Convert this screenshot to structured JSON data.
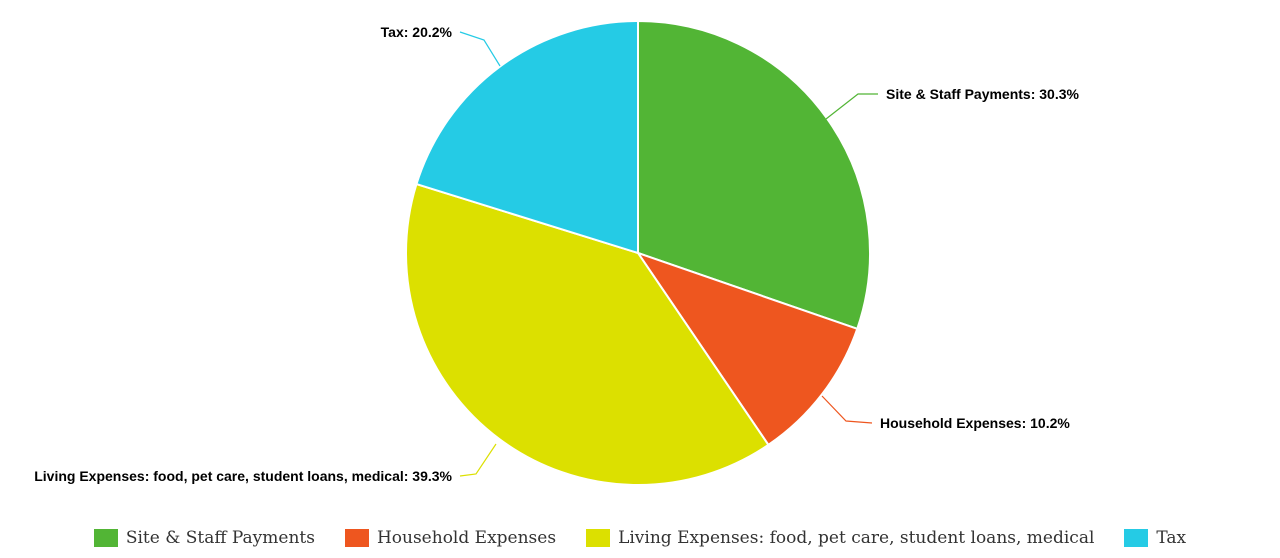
{
  "chart_data": {
    "type": "pie",
    "slices": [
      {
        "name": "Site & Staff Payments",
        "value": 30.3,
        "label": "Site & Staff Payments: 30.3%",
        "color": "#52b535"
      },
      {
        "name": "Household Expenses",
        "value": 10.2,
        "label": "Household Expenses: 10.2%",
        "color": "#ee561f"
      },
      {
        "name": "Living Expenses: food, pet care, student loans, medical",
        "value": 39.3,
        "label": "Living Expenses: food, pet care, student loans, medical: 39.3%",
        "color": "#dce000"
      },
      {
        "name": "Tax",
        "value": 20.2,
        "label": "Tax: 20.2%",
        "color": "#25cbe5"
      }
    ],
    "legend_position": "bottom"
  }
}
